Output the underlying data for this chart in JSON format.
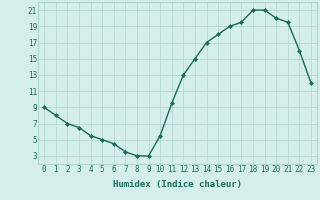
{
  "x": [
    0,
    1,
    2,
    3,
    4,
    5,
    6,
    7,
    8,
    9,
    10,
    11,
    12,
    13,
    14,
    15,
    16,
    17,
    18,
    19,
    20,
    21,
    22,
    23
  ],
  "y": [
    9,
    8,
    7,
    6.5,
    5.5,
    5,
    4.5,
    3.5,
    3,
    3,
    5.5,
    9.5,
    13,
    15,
    17,
    18,
    19,
    19.5,
    21,
    21,
    20,
    19.5,
    16,
    12
  ],
  "line_color": "#1a6b5a",
  "marker": "D",
  "marker_size": 2,
  "bg_color": "#d4eeeb",
  "grid_color": "#afd4d0",
  "xlabel": "Humidex (Indice chaleur)",
  "xlim": [
    -0.5,
    23.5
  ],
  "ylim": [
    2,
    22
  ],
  "yticks": [
    3,
    5,
    7,
    9,
    11,
    13,
    15,
    17,
    19,
    21
  ],
  "xticks": [
    0,
    1,
    2,
    3,
    4,
    5,
    6,
    7,
    8,
    9,
    10,
    11,
    12,
    13,
    14,
    15,
    16,
    17,
    18,
    19,
    20,
    21,
    22,
    23
  ],
  "xlabel_fontsize": 6.5,
  "tick_fontsize": 5.5
}
